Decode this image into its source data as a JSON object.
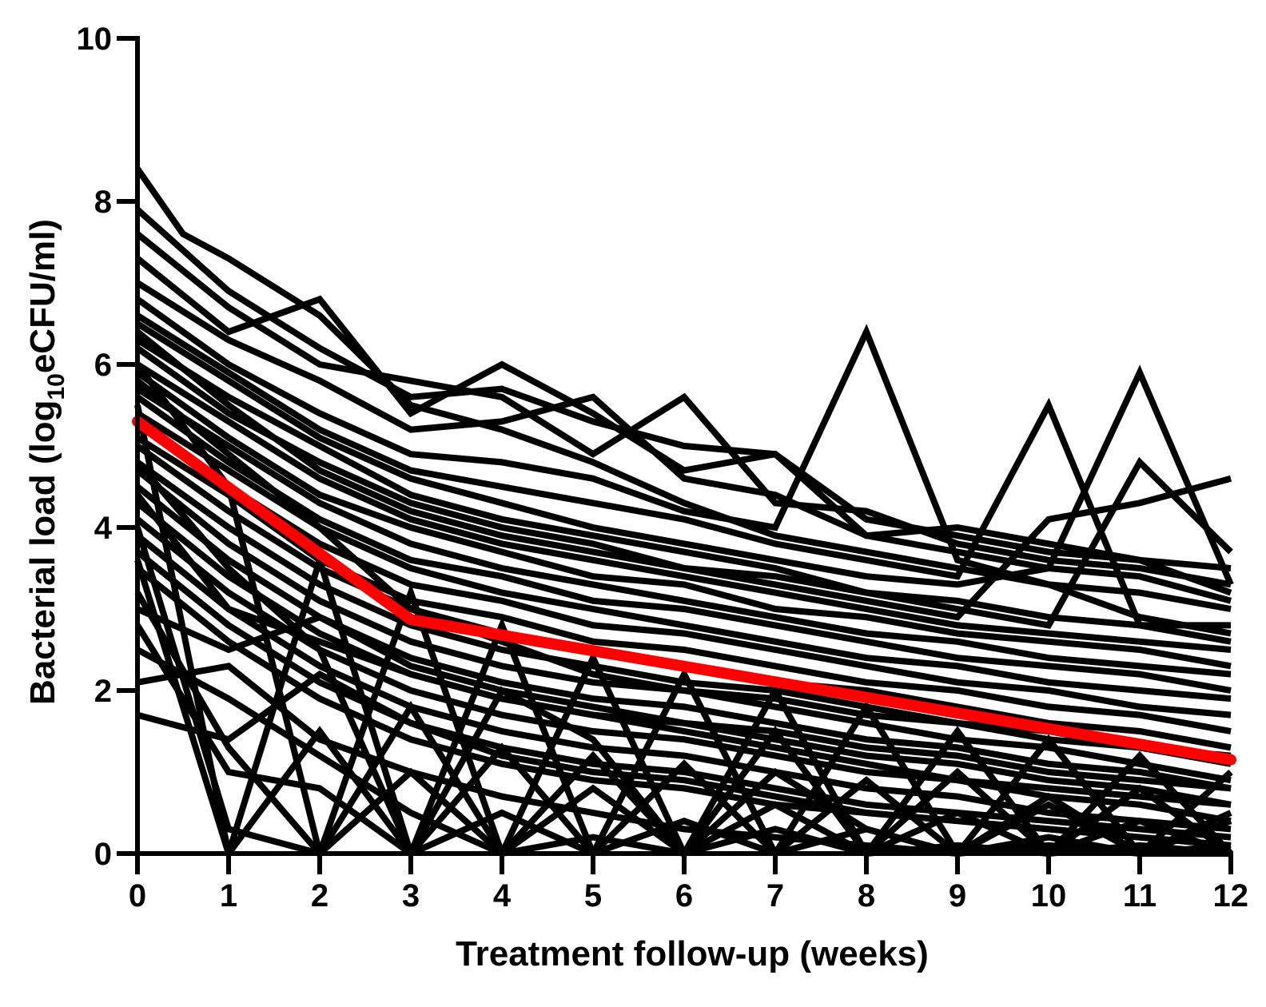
{
  "chart_data": {
    "type": "line",
    "title": "",
    "xlabel": "Treatment follow-up (weeks)",
    "ylabel_parts": {
      "before": "Bacterial load (log",
      "subscript": "10",
      "after": "eCFU/ml)"
    },
    "xlim": [
      0,
      12
    ],
    "ylim": [
      0,
      10
    ],
    "x_ticks": [
      0,
      1,
      2,
      3,
      4,
      5,
      6,
      7,
      8,
      9,
      10,
      11,
      12
    ],
    "x_tick_labels": [
      "0",
      "1",
      "2",
      "3",
      "4",
      "5",
      "6",
      "7",
      "8",
      "9",
      "10",
      "11",
      "12"
    ],
    "y_ticks": [
      0,
      2,
      4,
      6,
      8,
      10
    ],
    "y_tick_labels": [
      "0",
      "2",
      "4",
      "6",
      "8",
      "10"
    ],
    "grid": false,
    "legend": "none",
    "colors": {
      "individual": "#000000",
      "mean": "#ff0000"
    },
    "individual_series": [
      {
        "x": [
          0,
          0.5,
          1,
          2,
          3,
          4,
          5,
          6,
          7,
          8,
          9,
          10,
          11,
          12
        ],
        "y": [
          8.4,
          7.6,
          7.3,
          6.6,
          5.5,
          5.2,
          4.8,
          4.3,
          3.9,
          3.7,
          3.5,
          3.3,
          2.9,
          2.7
        ]
      },
      {
        "x": [
          0,
          1,
          2,
          3,
          4,
          5,
          6,
          7,
          8,
          9,
          10,
          11,
          12
        ],
        "y": [
          7.9,
          6.9,
          6.2,
          5.6,
          5.7,
          5.3,
          5.0,
          4.9,
          4.1,
          3.9,
          3.7,
          3.6,
          3.5
        ]
      },
      {
        "x": [
          0,
          1,
          2,
          3,
          4,
          5,
          6,
          7,
          8,
          9,
          10,
          11,
          12
        ],
        "y": [
          7.6,
          6.7,
          6.0,
          5.8,
          5.6,
          4.9,
          5.6,
          4.3,
          4.2,
          3.8,
          3.6,
          3.5,
          3.3
        ]
      },
      {
        "x": [
          0,
          1,
          2,
          3,
          4,
          5,
          6,
          7,
          8,
          9,
          10,
          11,
          12
        ],
        "y": [
          7.3,
          6.4,
          6.8,
          5.4,
          6.0,
          5.4,
          4.7,
          4.9,
          3.9,
          4.0,
          3.8,
          3.6,
          3.2
        ]
      },
      {
        "x": [
          0,
          1,
          2,
          3,
          4,
          5,
          6,
          7,
          8,
          9,
          10,
          11,
          12
        ],
        "y": [
          7.0,
          6.3,
          5.8,
          5.2,
          5.3,
          5.6,
          4.6,
          4.4,
          3.9,
          3.7,
          3.5,
          3.4,
          3.1
        ]
      },
      {
        "x": [
          0,
          1,
          2,
          3,
          4,
          5,
          6,
          7,
          8,
          9,
          10,
          11,
          12
        ],
        "y": [
          6.8,
          6.0,
          5.4,
          4.9,
          4.8,
          4.6,
          4.2,
          4.0,
          6.4,
          3.6,
          3.3,
          3.2,
          3.0
        ]
      },
      {
        "x": [
          0,
          1,
          2,
          3,
          4,
          5,
          6,
          7,
          8,
          9,
          10,
          11,
          12
        ],
        "y": [
          6.6,
          5.9,
          5.2,
          4.7,
          4.5,
          4.3,
          4.1,
          3.8,
          3.6,
          3.4,
          5.5,
          2.8,
          2.8
        ]
      },
      {
        "x": [
          0,
          1,
          2,
          3,
          4,
          5,
          6,
          7,
          8,
          9,
          10,
          11,
          12
        ],
        "y": [
          6.5,
          5.8,
          5.1,
          4.6,
          4.3,
          4.0,
          3.8,
          3.6,
          3.4,
          3.3,
          3.5,
          5.9,
          3.3
        ]
      },
      {
        "x": [
          0,
          1,
          2,
          3,
          4,
          5,
          6,
          7,
          8,
          9,
          10,
          11,
          12
        ],
        "y": [
          6.3,
          5.6,
          5.0,
          4.4,
          4.1,
          3.9,
          3.7,
          3.5,
          3.2,
          3.0,
          2.8,
          4.8,
          3.7
        ]
      },
      {
        "x": [
          0,
          1,
          2,
          3,
          4,
          5,
          6,
          7,
          8,
          9,
          10,
          11,
          12
        ],
        "y": [
          6.2,
          5.4,
          4.8,
          4.3,
          4.0,
          3.8,
          3.5,
          3.3,
          3.1,
          2.9,
          4.1,
          4.3,
          4.6
        ]
      },
      {
        "x": [
          0,
          1,
          2,
          3,
          4,
          5,
          6,
          7,
          8,
          9,
          10,
          11,
          12
        ],
        "y": [
          6.0,
          5.3,
          4.6,
          4.1,
          3.8,
          3.6,
          3.4,
          3.2,
          3.0,
          2.8,
          2.7,
          2.6,
          2.5
        ]
      },
      {
        "x": [
          0,
          1,
          2,
          3,
          4,
          5,
          6,
          7,
          8,
          9,
          10,
          11,
          12
        ],
        "y": [
          5.9,
          5.1,
          4.4,
          4.0,
          3.7,
          3.4,
          3.3,
          3.0,
          2.9,
          2.7,
          2.6,
          2.5,
          2.3
        ]
      },
      {
        "x": [
          0,
          1,
          2,
          3,
          4,
          5,
          6,
          7,
          8,
          9,
          10,
          11,
          12
        ],
        "y": [
          5.7,
          5.0,
          4.3,
          3.8,
          3.5,
          3.3,
          3.1,
          2.9,
          2.7,
          2.6,
          2.4,
          2.3,
          2.2
        ]
      },
      {
        "x": [
          0,
          1,
          2,
          3,
          4,
          5,
          6,
          7,
          8,
          9,
          10,
          11,
          12
        ],
        "y": [
          5.6,
          4.8,
          4.1,
          3.6,
          3.4,
          3.1,
          3.0,
          2.8,
          2.6,
          2.4,
          2.3,
          2.2,
          2.0
        ]
      },
      {
        "x": [
          0,
          1,
          2,
          3,
          4,
          5,
          6,
          7,
          8,
          9,
          10,
          11,
          12
        ],
        "y": [
          5.4,
          4.7,
          4.0,
          3.5,
          3.2,
          3.0,
          2.8,
          2.6,
          2.4,
          2.3,
          2.1,
          2.0,
          1.9
        ]
      },
      {
        "x": [
          0,
          1,
          2,
          3,
          4,
          5,
          6,
          7,
          8,
          9,
          10,
          11,
          12
        ],
        "y": [
          5.3,
          4.5,
          3.8,
          3.3,
          3.1,
          2.8,
          2.7,
          2.5,
          2.3,
          2.1,
          2.0,
          1.8,
          1.7
        ]
      },
      {
        "x": [
          0,
          1,
          2,
          3,
          4,
          5,
          6,
          7,
          8,
          9,
          10,
          11,
          12
        ],
        "y": [
          5.1,
          4.4,
          3.6,
          3.1,
          2.9,
          2.6,
          2.5,
          2.3,
          2.1,
          2.0,
          1.8,
          1.7,
          1.5
        ]
      },
      {
        "x": [
          0,
          1,
          2,
          3,
          4,
          5,
          6,
          7,
          8,
          9,
          10,
          11,
          12
        ],
        "y": [
          5.0,
          4.2,
          3.5,
          3.0,
          2.7,
          2.5,
          2.3,
          2.1,
          2.0,
          1.8,
          1.6,
          1.5,
          1.3
        ]
      },
      {
        "x": [
          0,
          1,
          2,
          3,
          4,
          5,
          6,
          7,
          8,
          9,
          10,
          11,
          12
        ],
        "y": [
          4.8,
          4.0,
          3.3,
          2.8,
          2.5,
          2.3,
          2.1,
          2.0,
          1.8,
          1.6,
          1.5,
          1.3,
          1.1
        ]
      },
      {
        "x": [
          0,
          1,
          2,
          3,
          4,
          5,
          6,
          7,
          8,
          9,
          10,
          11,
          12
        ],
        "y": [
          4.7,
          3.8,
          3.1,
          2.6,
          2.3,
          2.1,
          2.0,
          1.8,
          1.6,
          1.4,
          1.3,
          1.1,
          0.9
        ]
      },
      {
        "x": [
          0,
          1,
          2,
          3,
          4,
          5,
          6,
          7,
          8,
          9,
          10,
          11,
          12
        ],
        "y": [
          4.5,
          3.6,
          2.9,
          2.4,
          2.1,
          1.9,
          1.8,
          1.6,
          1.4,
          1.3,
          1.1,
          1.0,
          0.8
        ]
      },
      {
        "x": [
          0,
          1,
          2,
          3,
          4,
          5,
          6,
          7,
          8,
          9,
          10,
          11,
          12
        ],
        "y": [
          4.3,
          3.4,
          2.7,
          2.2,
          1.9,
          1.7,
          1.6,
          1.4,
          1.2,
          1.1,
          0.9,
          0.8,
          0.6
        ]
      },
      {
        "x": [
          0,
          1,
          2,
          3,
          4,
          5,
          6,
          7,
          8,
          9,
          10,
          11,
          12
        ],
        "y": [
          4.1,
          3.2,
          2.5,
          2.0,
          1.7,
          1.5,
          1.4,
          1.2,
          1.0,
          0.9,
          0.7,
          0.6,
          0.4
        ]
      },
      {
        "x": [
          0,
          1,
          2,
          3,
          4,
          5,
          6,
          7,
          8,
          9,
          10,
          11,
          12
        ],
        "y": [
          3.9,
          3.0,
          2.3,
          1.8,
          1.5,
          1.3,
          1.2,
          1.0,
          0.8,
          0.7,
          0.5,
          0.4,
          0.3
        ]
      },
      {
        "x": [
          0,
          1,
          2,
          3,
          4,
          5,
          6,
          7,
          8,
          9,
          10,
          11,
          12
        ],
        "y": [
          3.7,
          2.8,
          2.1,
          1.6,
          1.3,
          1.1,
          1.0,
          0.8,
          0.6,
          0.5,
          0.4,
          0.3,
          0.2
        ]
      },
      {
        "x": [
          0,
          1,
          2,
          3,
          4,
          5,
          6,
          7,
          8,
          9,
          10,
          11,
          12
        ],
        "y": [
          3.5,
          2.6,
          1.9,
          1.4,
          1.1,
          0.9,
          0.8,
          0.6,
          0.5,
          0.4,
          0.3,
          0.2,
          0.1
        ]
      },
      {
        "x": [
          0,
          1,
          2,
          3,
          4,
          5,
          6,
          7,
          8,
          9,
          10,
          11,
          12
        ],
        "y": [
          6.0,
          4.5,
          0.0,
          3.2,
          0.0,
          2.4,
          0.0,
          2.0,
          0.0,
          1.5,
          0.0,
          1.2,
          0.0
        ]
      },
      {
        "x": [
          0,
          1,
          2,
          3,
          4,
          5,
          6,
          7,
          8,
          9,
          10,
          11,
          12
        ],
        "y": [
          5.5,
          0.0,
          3.6,
          0.0,
          2.8,
          0.0,
          2.2,
          0.0,
          1.8,
          0.0,
          1.4,
          0.0,
          1.0
        ]
      },
      {
        "x": [
          0,
          1,
          2,
          3,
          4,
          5,
          6,
          7,
          8,
          9,
          10,
          11,
          12
        ],
        "y": [
          4.8,
          3.5,
          2.5,
          0.0,
          2.0,
          1.4,
          0.0,
          1.5,
          0.0,
          1.0,
          0.0,
          0.8,
          0.0
        ]
      },
      {
        "x": [
          0,
          1,
          2,
          3,
          4,
          5,
          6,
          7,
          8,
          9,
          10,
          11,
          12
        ],
        "y": [
          4.0,
          0.3,
          0.0,
          1.8,
          0.0,
          1.2,
          0.0,
          1.0,
          0.3,
          0.0,
          0.6,
          0.0,
          0.4
        ]
      },
      {
        "x": [
          0,
          1,
          2,
          3,
          4,
          5,
          6,
          7,
          8,
          9,
          10,
          11,
          12
        ],
        "y": [
          3.6,
          0.0,
          1.5,
          0.0,
          1.3,
          0.0,
          1.1,
          0.0,
          0.9,
          0.0,
          0.7,
          0.0,
          0.5
        ]
      },
      {
        "x": [
          0,
          1,
          2,
          3,
          4,
          5,
          6,
          7,
          8,
          9,
          10,
          11,
          12
        ],
        "y": [
          3.2,
          1.3,
          0.0,
          1.0,
          0.0,
          0.8,
          0.0,
          0.6,
          0.0,
          0.5,
          0.0,
          0.4,
          0.0
        ]
      },
      {
        "x": [
          0,
          1,
          2,
          3,
          4,
          5,
          6,
          7,
          8,
          9,
          10,
          11,
          12
        ],
        "y": [
          2.8,
          1.0,
          0.8,
          0.0,
          0.5,
          0.0,
          0.4,
          0.0,
          0.3,
          0.0,
          0.2,
          0.0,
          0.1
        ]
      },
      {
        "x": [
          0,
          1,
          2,
          3,
          4,
          5,
          6,
          7,
          8,
          9,
          10,
          11,
          12
        ],
        "y": [
          2.5,
          1.9,
          1.2,
          0.5,
          0.0,
          0.2,
          0.0,
          0.3,
          0.0,
          0.1,
          0.0,
          0.1,
          0.0
        ]
      },
      {
        "x": [
          0,
          1,
          2,
          3,
          4,
          5,
          6,
          7,
          8,
          9,
          10,
          11,
          12
        ],
        "y": [
          2.1,
          2.3,
          1.4,
          1.0,
          0.7,
          0.5,
          0.3,
          0.2,
          0.1,
          0.0,
          0.1,
          0.0,
          0.0
        ]
      },
      {
        "x": [
          0,
          1,
          2,
          3,
          4,
          5,
          6,
          7,
          8,
          9,
          10,
          11,
          12
        ],
        "y": [
          1.7,
          1.4,
          2.2,
          1.6,
          1.2,
          1.0,
          0.9,
          0.7,
          0.5,
          0.4,
          0.3,
          0.2,
          0.1
        ]
      },
      {
        "x": [
          0,
          1,
          2,
          3,
          4,
          5,
          6,
          7,
          8,
          9,
          10,
          11,
          12
        ],
        "y": [
          4.4,
          3.0,
          2.6,
          2.2,
          1.9,
          1.7,
          1.5,
          1.3,
          1.1,
          0.9,
          0.8,
          0.7,
          0.6
        ]
      },
      {
        "x": [
          0,
          1,
          2,
          3,
          4,
          5,
          6,
          7,
          8,
          9,
          10,
          11,
          12
        ],
        "y": [
          3.0,
          2.5,
          2.9,
          2.3,
          2.0,
          1.8,
          1.6,
          1.5,
          1.3,
          1.2,
          1.0,
          0.9,
          0.8
        ]
      },
      {
        "x": [
          0,
          1,
          2,
          3,
          4,
          5,
          6,
          7,
          8,
          9,
          10,
          11,
          12
        ],
        "y": [
          5.8,
          4.9,
          4.0,
          3.0,
          2.6,
          2.2,
          2.0,
          1.9,
          1.7,
          1.6,
          1.4,
          1.3,
          1.2
        ]
      },
      {
        "x": [
          0,
          1,
          2,
          3,
          4,
          5,
          6,
          7,
          8,
          9,
          10,
          11,
          12
        ],
        "y": [
          6.4,
          5.5,
          4.7,
          4.2,
          3.9,
          3.7,
          3.5,
          3.4,
          3.2,
          3.1,
          2.9,
          2.8,
          2.6
        ]
      }
    ],
    "mean_series": {
      "x": [
        0,
        3,
        12
      ],
      "y": [
        5.3,
        2.87,
        1.15
      ]
    }
  }
}
